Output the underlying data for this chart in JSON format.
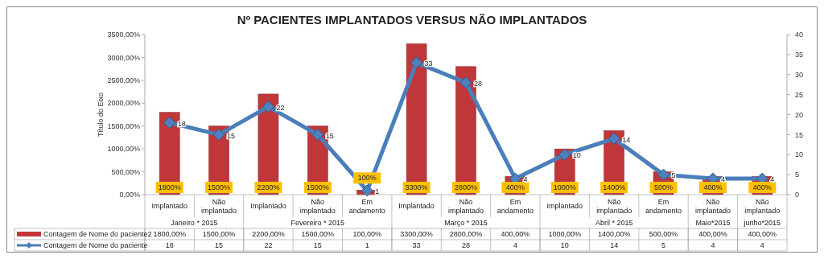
{
  "chart_data": {
    "type": "bar",
    "title": "Nº PACIENTES IMPLANTADOS VERSUS NÃO IMPLANTADOS",
    "ylabel": "Título do Eixo",
    "categories": [
      "Implantado",
      "Não implantado",
      "Implantado",
      "Não implantado",
      "Em andamento",
      "Implantado",
      "Não implantado",
      "Em andamento",
      "Implantado",
      "Não implantado",
      "Em andamento",
      "Não implantado",
      "Não implantado"
    ],
    "annotations": [
      "Janeiro * 2015",
      "Fevereiro * 2015",
      "Março * 2015",
      "Abril * 2015",
      "Maio*2015",
      "junho*2015"
    ],
    "series": [
      {
        "name": "Contagem de Nome do paciente2",
        "color": "#c0373a",
        "values": [
          1800,
          1500,
          2200,
          1500,
          100,
          3300,
          2800,
          400,
          1000,
          1400,
          500,
          400,
          400
        ],
        "value_labels": [
          "1800%",
          "1500%",
          "2200%",
          "1500%",
          "100%",
          "3300%",
          "2800%",
          "400%",
          "1000%",
          "1400%",
          "500%",
          "400%",
          "400%"
        ]
      },
      {
        "name": "Contagem de Nome do paciente",
        "type": "line",
        "axis": "y2",
        "color": "#4a7ebb",
        "marker": "diamond",
        "values": [
          18,
          15,
          22,
          15,
          1,
          33,
          28,
          4,
          10,
          14,
          5,
          4,
          4
        ]
      }
    ],
    "cell_labels": [
      [
        "1800,00%",
        "1500,00%",
        "2200,00%",
        "1500,00%",
        "100,00%",
        "3300,00%",
        "2800,00%",
        "400,00%",
        "1000,00%",
        "1400,00%",
        "500,00%",
        "400,00%",
        "400,00%"
      ],
      [
        "18",
        "15",
        "22",
        "15",
        "1",
        "33",
        "28",
        "4",
        "10",
        "14",
        "5",
        "4",
        "4"
      ]
    ],
    "data_labels": true,
    "ylim": [
      0,
      3500
    ],
    "yticks": [
      {
        "value": 0,
        "label": "0,00%"
      },
      {
        "value": 500,
        "label": "500,00%"
      },
      {
        "value": 1000,
        "label": "1000,00%"
      },
      {
        "value": 1500,
        "label": "1500,00%"
      },
      {
        "value": 2000,
        "label": "2000,00%"
      },
      {
        "value": 2500,
        "label": "2500,00%"
      },
      {
        "value": 3000,
        "label": "3000,00%"
      },
      {
        "value": 3500,
        "label": "3500,00%"
      }
    ],
    "y2lim": [
      0,
      40
    ],
    "y2ticks": [
      0,
      5,
      10,
      15,
      20,
      25,
      30,
      35,
      40
    ],
    "legend": "bottom",
    "grid": false
  }
}
